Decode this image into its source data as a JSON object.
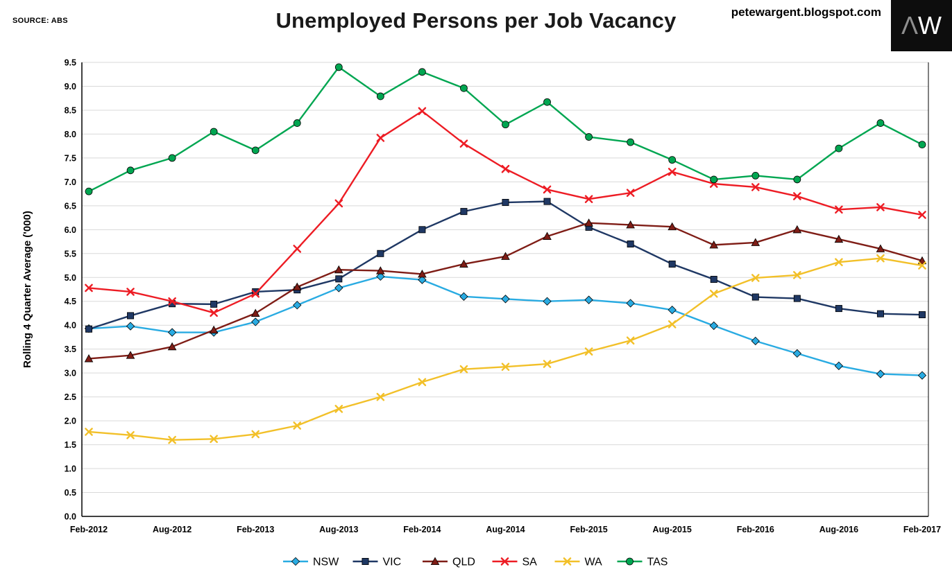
{
  "header": {
    "source_label": "SOURCE: ABS",
    "title": "Unemployed Persons per Job Vacancy",
    "website": "petewargent.blogspot.com",
    "logo": {
      "glyph_a": "Λ",
      "glyph_w": "W"
    }
  },
  "chart_data": {
    "type": "line",
    "title": "Unemployed Persons per Job Vacancy",
    "xlabel": "",
    "ylabel": "Rolling 4 Quarter Average ('000)",
    "ylim": [
      0,
      9.5
    ],
    "y_tick_step": 0.5,
    "grid": "horizontal",
    "legend_position": "bottom",
    "categories": [
      "Feb-2012",
      "May-2012",
      "Aug-2012",
      "Nov-2012",
      "Feb-2013",
      "May-2013",
      "Aug-2013",
      "Nov-2013",
      "Feb-2014",
      "May-2014",
      "Aug-2014",
      "Nov-2014",
      "Feb-2015",
      "May-2015",
      "Aug-2015",
      "Nov-2015",
      "Feb-2016",
      "May-2016",
      "Aug-2016",
      "Nov-2016",
      "Feb-2017"
    ],
    "x_tick_labels": [
      "Feb-2012",
      "Aug-2012",
      "Feb-2013",
      "Aug-2013",
      "Feb-2014",
      "Aug-2014",
      "Feb-2015",
      "Aug-2015",
      "Feb-2016",
      "Aug-2016",
      "Feb-2017"
    ],
    "x_tick_every": 2,
    "series": [
      {
        "name": "NSW",
        "color": "#29abe2",
        "marker": "diamond",
        "values": [
          3.93,
          3.98,
          3.85,
          3.85,
          4.07,
          4.42,
          4.78,
          5.02,
          4.95,
          4.6,
          4.55,
          4.5,
          4.53,
          4.46,
          4.32,
          3.99,
          3.67,
          3.41,
          3.15,
          2.98,
          2.95
        ]
      },
      {
        "name": "VIC",
        "color": "#1f3864",
        "marker": "square",
        "values": [
          3.92,
          4.2,
          4.45,
          4.44,
          4.7,
          4.74,
          4.97,
          5.5,
          6.0,
          6.38,
          6.57,
          6.59,
          6.05,
          5.7,
          5.28,
          4.96,
          4.59,
          4.56,
          4.35,
          4.24,
          4.22
        ]
      },
      {
        "name": "QLD",
        "color": "#7f1d16",
        "marker": "triangle",
        "values": [
          3.3,
          3.37,
          3.55,
          3.9,
          4.25,
          4.8,
          5.16,
          5.14,
          5.07,
          5.28,
          5.44,
          5.86,
          6.14,
          6.1,
          6.06,
          5.68,
          5.73,
          6.0,
          5.8,
          5.6,
          5.35
        ]
      },
      {
        "name": "SA",
        "color": "#ed1c24",
        "marker": "x",
        "values": [
          4.78,
          4.7,
          4.5,
          4.26,
          4.66,
          5.6,
          6.55,
          7.92,
          8.48,
          7.8,
          7.27,
          6.84,
          6.64,
          6.77,
          7.21,
          6.96,
          6.89,
          6.7,
          6.42,
          6.47,
          6.31
        ]
      },
      {
        "name": "WA",
        "color": "#f2c029",
        "marker": "x",
        "values": [
          1.77,
          1.7,
          1.6,
          1.62,
          1.72,
          1.9,
          2.25,
          2.5,
          2.81,
          3.08,
          3.13,
          3.19,
          3.45,
          3.68,
          4.02,
          4.66,
          4.99,
          5.05,
          5.32,
          5.4,
          5.25
        ]
      },
      {
        "name": "TAS",
        "color": "#00a651",
        "marker": "circle",
        "values": [
          6.8,
          7.24,
          7.5,
          8.05,
          7.66,
          8.23,
          9.4,
          8.79,
          9.3,
          8.96,
          8.2,
          8.67,
          7.94,
          7.83,
          7.46,
          7.05,
          7.13,
          7.05,
          7.7,
          8.23,
          7.78
        ]
      }
    ]
  }
}
